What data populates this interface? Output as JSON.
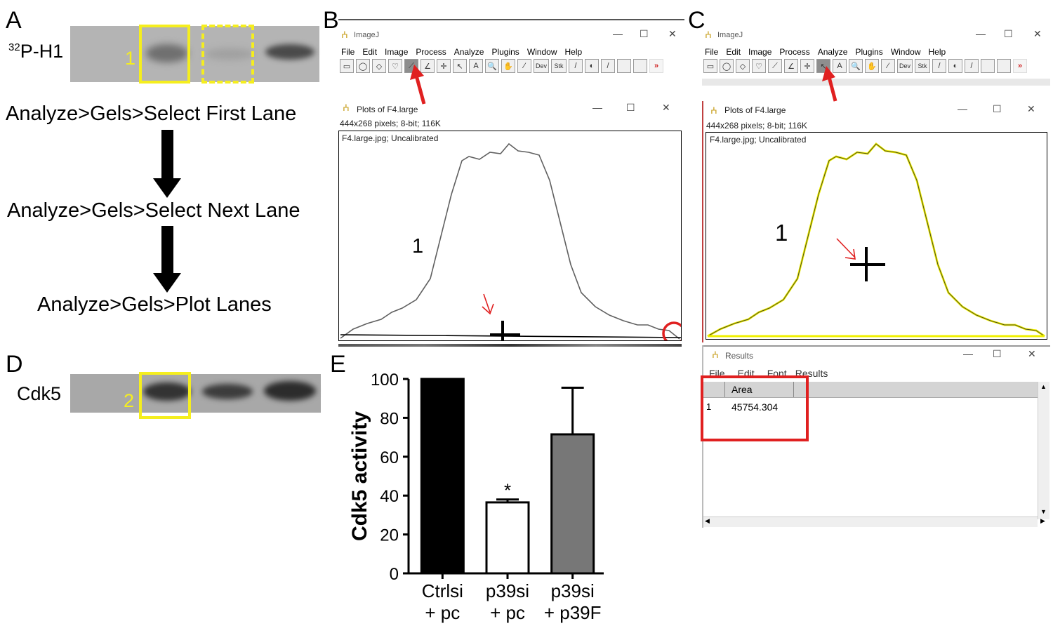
{
  "panels": {
    "a": "A",
    "b": "B",
    "c": "C",
    "d": "D",
    "e": "E"
  },
  "panel_a": {
    "blot_label_sup": "32",
    "blot_label": "P-H1",
    "box_number": "1",
    "steps": [
      "Analyze>Gels>Select First Lane",
      "Analyze>Gels>Select Next Lane",
      "Analyze>Gels>Plot Lanes"
    ]
  },
  "panel_d": {
    "blot_label": "Cdk5",
    "box_number": "2"
  },
  "imagej": {
    "title": "ImageJ",
    "menu": [
      "File",
      "Edit",
      "Image",
      "Process",
      "Analyze",
      "Plugins",
      "Window",
      "Help"
    ],
    "tools": [
      "rect-icon",
      "oval-icon",
      "polygon-icon",
      "freehand-icon",
      "line-icon",
      "angle-icon",
      "point-icon",
      "wand-icon",
      "text-icon",
      "magnifier-icon",
      "hand-icon",
      "dropper-icon",
      "dev-icon",
      "stk-icon",
      "brush-icon",
      "flood-icon",
      "pencil-icon",
      "blank-icon",
      "blank-icon",
      "more-icon"
    ],
    "tool_labels": [
      "▭",
      "◯",
      "◇",
      "♡",
      "⟋",
      "∠",
      "✛",
      "↖",
      "A",
      "🔍",
      "✋",
      "⁄",
      "Dev",
      "Stk",
      "/",
      "◐",
      "/",
      "",
      "",
      "»"
    ]
  },
  "plot_window": {
    "title": "Plots of F4.large",
    "info": "444x268 pixels; 8-bit; 116K",
    "subtitle": "F4.large.jpg; Uncalibrated",
    "peak_label": "1"
  },
  "results_window": {
    "title": "Results",
    "menu": [
      "File",
      "Edit",
      "Font",
      "Results"
    ],
    "column_header": "Area",
    "rows": [
      {
        "index": "1",
        "area": "45754.304"
      }
    ]
  },
  "window_controls": {
    "minimize": "—",
    "maximize": "☐",
    "close": "✕"
  },
  "colors": {
    "highlight_yellow": "#f5ee1e",
    "annotation_red": "#e02020"
  },
  "chart_data": {
    "type": "bar",
    "categories": [
      [
        "Ctrlsi",
        "+ pc"
      ],
      [
        "p39si",
        "+ pc"
      ],
      [
        "p39si",
        "+ p39F"
      ]
    ],
    "values": [
      100,
      36.5,
      71.5
    ],
    "errors": [
      0,
      1.5,
      24
    ],
    "fills": [
      "#000000",
      "#ffffff",
      "#777777"
    ],
    "significance": [
      "",
      "*",
      ""
    ],
    "ylabel": "Cdk5 activity",
    "ylim": [
      0,
      100
    ],
    "yticks": [
      0,
      20,
      40,
      60,
      80,
      100
    ]
  }
}
